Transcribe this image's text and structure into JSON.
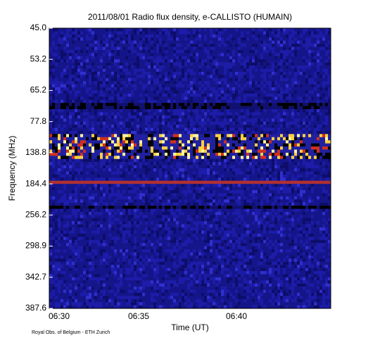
{
  "chart_data": {
    "type": "spectrogram",
    "title": "2011/08/01  Radio flux density, e-CALLISTO (HUMAIN)",
    "x_label": "Time (UT)",
    "y_label": "Frequency (MHz)",
    "xticks": [
      "06:30",
      "06:35",
      "06:40"
    ],
    "yticks": [
      {
        "value": 45,
        "label": "45.0"
      },
      53.2,
      65.2,
      77.8,
      138.8,
      184.4,
      256.2,
      298.9,
      342.7,
      387.6
    ],
    "footer": "Royal Obs. of Belgium - ETH Zurich"
  }
}
